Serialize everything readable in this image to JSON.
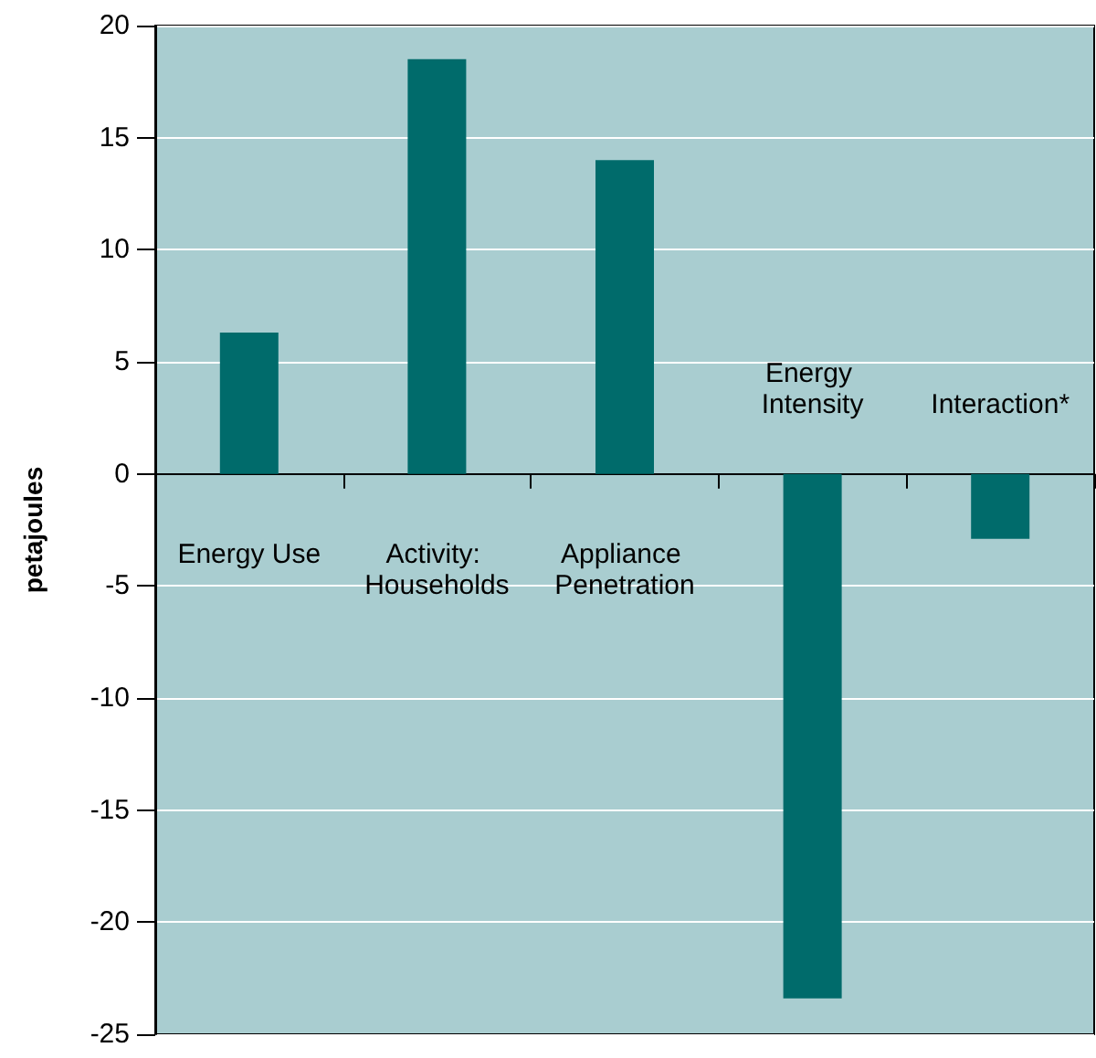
{
  "chart_data": {
    "type": "bar",
    "ylabel": "petajoules",
    "categories": [
      "Energy Use",
      "Activity: Households",
      "Appliance Penetration",
      "Energy Intensity",
      "Interaction*"
    ],
    "values": [
      6.3,
      18.5,
      14,
      -23.4,
      -2.9
    ],
    "color": "#006b6b",
    "ylim": [
      -25,
      20
    ],
    "yticks": [
      -25,
      -20,
      -15,
      -10,
      -5,
      0,
      5,
      10,
      15,
      20
    ],
    "grid": "y"
  }
}
